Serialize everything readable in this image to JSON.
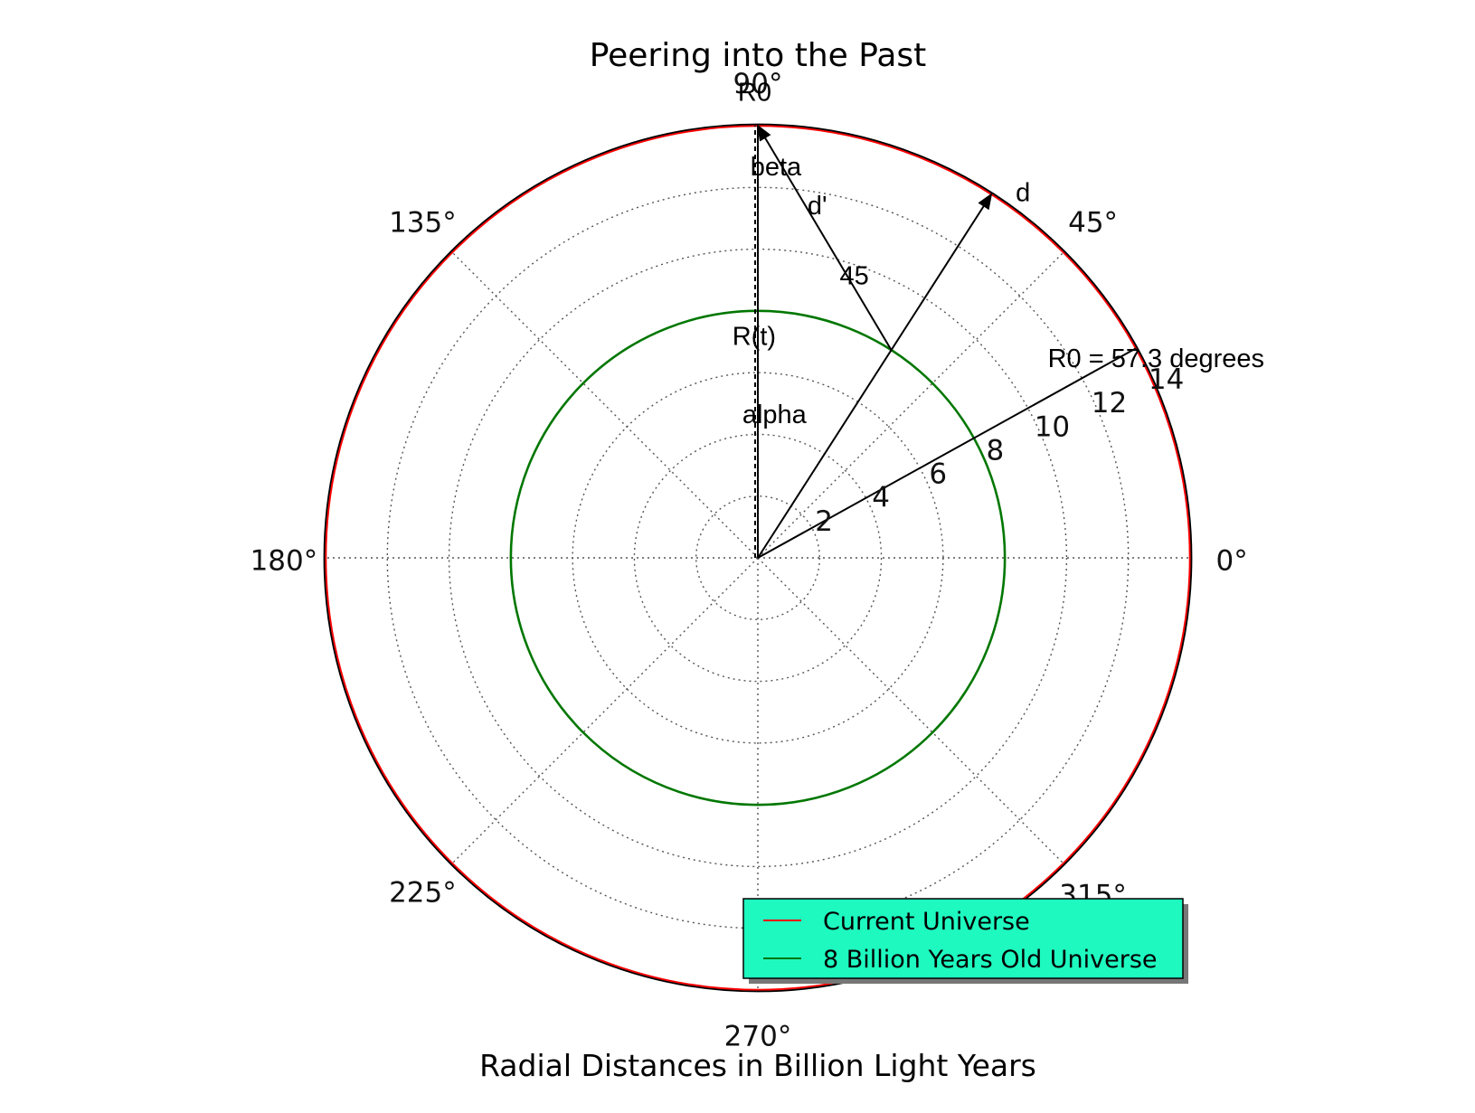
{
  "chart_data": {
    "type": "polar",
    "title": "Peering into the Past",
    "xlabel": "Radial Distances in Billion Light Years",
    "r_ticks": [
      2,
      4,
      6,
      8,
      10,
      12,
      14
    ],
    "rlim": [
      0,
      14
    ],
    "theta_ticks": [
      {
        "deg": 0,
        "label": "0°"
      },
      {
        "deg": 45,
        "label": "45°"
      },
      {
        "deg": 90,
        "label": "90°"
      },
      {
        "deg": 135,
        "label": "135°"
      },
      {
        "deg": 180,
        "label": "180°"
      },
      {
        "deg": 225,
        "label": "225°"
      },
      {
        "deg": 270,
        "label": "270°"
      },
      {
        "deg": 315,
        "label": "315°"
      }
    ],
    "grid": true,
    "series": [
      {
        "name": "Current Universe",
        "radius": 14,
        "color": "#ff0000"
      },
      {
        "name": "8 Billion Years Old Universe",
        "radius": 8,
        "color": "#007700"
      }
    ],
    "legend": {
      "placement": "lower-right",
      "background": "#1ef9c0"
    },
    "vectors": [
      {
        "from_r": 0,
        "from_theta": 0,
        "to_r": 14,
        "to_theta": 90,
        "label": "R0",
        "style": "dashed",
        "arrow": false
      },
      {
        "from_r": 0,
        "from_theta": 0,
        "to_r": 14,
        "to_theta": 90,
        "label": "",
        "style": "solid",
        "arrow": false
      },
      {
        "from_r": 0,
        "from_theta": 0,
        "to_r": 14,
        "to_theta": 57.3,
        "label": "d",
        "style": "solid",
        "arrow": true
      },
      {
        "from_r": 8,
        "from_theta": 57.3,
        "to_r": 14,
        "to_theta": 90,
        "label": "d'",
        "style": "solid",
        "arrow": true
      },
      {
        "from_r": 0,
        "from_theta": 0,
        "to_r": 14,
        "to_theta": 29,
        "label": "R0 = 57.3 degrees",
        "style": "solid",
        "arrow": false
      }
    ],
    "annotations": [
      {
        "text": "R0",
        "r": 14.8,
        "theta": 90.4
      },
      {
        "text": "d",
        "r": 14.4,
        "theta": 53.4
      },
      {
        "text": "beta",
        "r": 12.4,
        "theta": 87.3
      },
      {
        "text": "d'",
        "r": 11.3,
        "theta": 80.2
      },
      {
        "text": "45",
        "r": 9.4,
        "theta": 70.6
      },
      {
        "text": "R0 = 57.3 degrees",
        "r": 14.3,
        "theta": 25.6
      },
      {
        "text": "R(t)",
        "r": 6.9,
        "theta": 91.0
      },
      {
        "text": "alpha",
        "r": 4.4,
        "theta": 83.0
      }
    ],
    "colors": {
      "axis": "#000000",
      "grid": "#555555",
      "vector": "#000000"
    }
  }
}
